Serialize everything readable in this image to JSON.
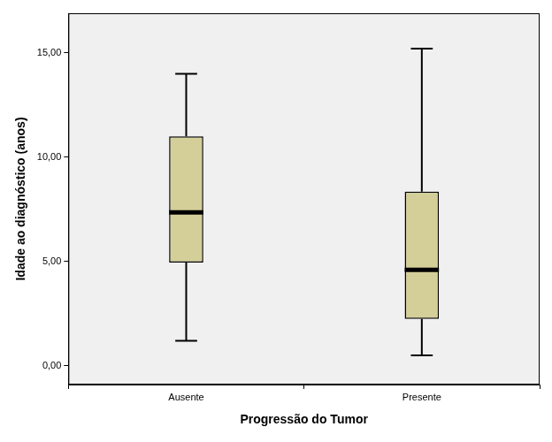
{
  "chart_data": {
    "type": "boxplot",
    "xlabel": "Progressão do Tumor",
    "ylabel": "Idade ao diagnóstico (anos)",
    "categories": [
      "Ausente",
      "Presente"
    ],
    "boxes": [
      {
        "min": 1.2,
        "q1": 4.95,
        "median": 7.35,
        "q3": 11.0,
        "max": 14.0
      },
      {
        "min": 0.5,
        "q1": 2.25,
        "median": 4.6,
        "q3": 8.35,
        "max": 15.2
      }
    ],
    "color": "#d4cf99",
    "ylim": [
      -0.9,
      16.9
    ],
    "yticks": [
      {
        "value": 0,
        "label": "0,00"
      },
      {
        "value": 5,
        "label": "5,00"
      },
      {
        "value": 10,
        "label": "10,00"
      },
      {
        "value": 15,
        "label": "15,00"
      }
    ],
    "grid": false
  }
}
